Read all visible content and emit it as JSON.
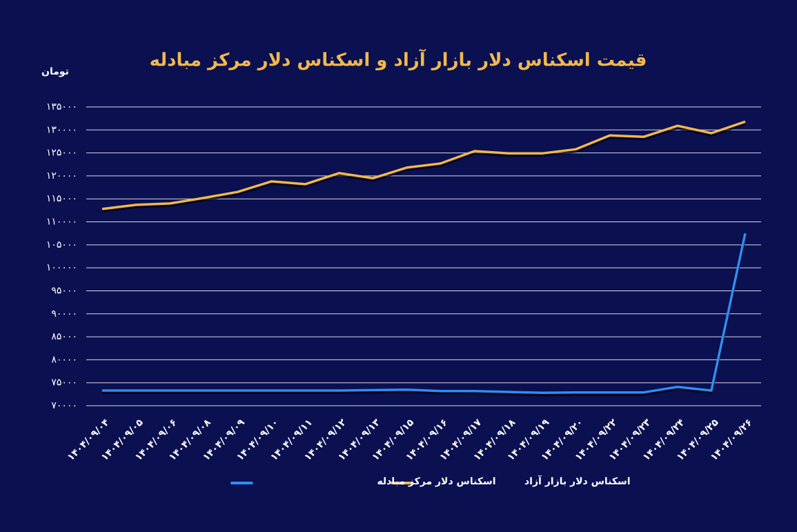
{
  "chart_data": {
    "type": "line",
    "title": "قیمت اسکناس دلار بازار آزاد و اسکناس دلار مرکز مبادله",
    "y_label": "تومان",
    "categories": [
      "۱۴۰۴/۰۹/۰۴",
      "۱۴۰۴/۰۹/۰۵",
      "۱۴۰۴/۰۹/۰۶",
      "۱۴۰۴/۰۹/۰۸",
      "۱۴۰۴/۰۹/۰۹",
      "۱۴۰۴/۰۹/۱۰",
      "۱۴۰۴/۰۹/۱۱",
      "۱۴۰۴/۰۹/۱۲",
      "۱۴۰۴/۰۹/۱۳",
      "۱۴۰۴/۰۹/۱۵",
      "۱۴۰۴/۰۹/۱۶",
      "۱۴۰۴/۰۹/۱۷",
      "۱۴۰۴/۰۹/۱۸",
      "۱۴۰۴/۰۹/۱۹",
      "۱۴۰۴/۰۹/۲۰",
      "۱۴۰۴/۰۹/۲۲",
      "۱۴۰۴/۰۹/۲۳",
      "۱۴۰۴/۰۹/۲۴",
      "۱۴۰۴/۰۹/۲۵",
      "۱۴۰۴/۰۹/۲۶"
    ],
    "series": [
      {
        "name": "اسکناس دلار مرکز مبادله",
        "color": "#2f8ef2",
        "values": [
          73300,
          73300,
          73300,
          73300,
          73300,
          73300,
          73300,
          73300,
          73400,
          73500,
          73200,
          73200,
          73000,
          72800,
          72900,
          72900,
          72900,
          74100,
          73300,
          107500
        ]
      },
      {
        "name": "اسکناس دلار بازار آزاد",
        "color": "#f2b84b",
        "values": [
          112800,
          113700,
          114000,
          115200,
          116500,
          118800,
          118200,
          120600,
          119500,
          121800,
          122700,
          125400,
          124900,
          124900,
          125800,
          128800,
          128500,
          130900,
          129300,
          131800
        ]
      }
    ],
    "ylim": [
      70000,
      135000
    ],
    "yticks": [
      {
        "value": 70000,
        "label": "۷۰۰۰۰"
      },
      {
        "value": 75000,
        "label": "۷۵۰۰۰"
      },
      {
        "value": 80000,
        "label": "۸۰۰۰۰"
      },
      {
        "value": 85000,
        "label": "۸۵۰۰۰"
      },
      {
        "value": 90000,
        "label": "۹۰۰۰۰"
      },
      {
        "value": 95000,
        "label": "۹۵۰۰۰"
      },
      {
        "value": 100000,
        "label": "۱۰۰۰۰۰"
      },
      {
        "value": 105000,
        "label": "۱۰۵۰۰۰"
      },
      {
        "value": 110000,
        "label": "۱۱۰۰۰۰"
      },
      {
        "value": 115000,
        "label": "۱۱۵۰۰۰"
      },
      {
        "value": 120000,
        "label": "۱۲۰۰۰۰"
      },
      {
        "value": 125000,
        "label": "۱۲۵۰۰۰"
      },
      {
        "value": 130000,
        "label": "۱۳۰۰۰۰"
      },
      {
        "value": 135000,
        "label": "۱۳۵۰۰۰"
      }
    ],
    "grid": true,
    "legend": "bottom"
  }
}
